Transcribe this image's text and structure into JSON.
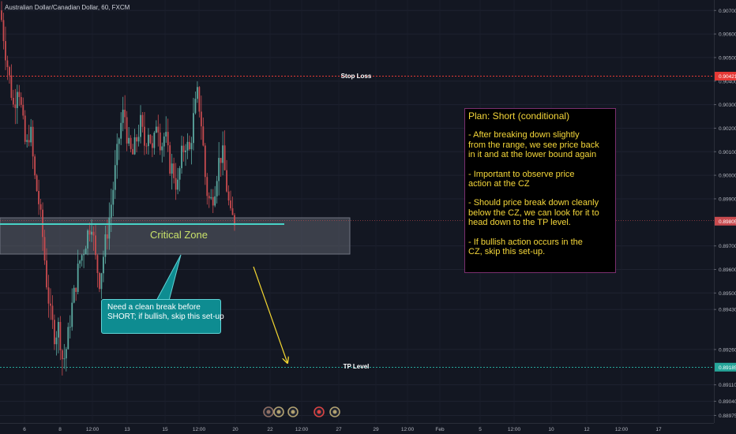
{
  "header": {
    "symbol": "Australian Dollar/Canadian Dollar, 60, FXCM"
  },
  "annotations": {
    "stop_loss": "Stop Loss",
    "tp_level": "TP Level",
    "critical_zone": "Critical Zone",
    "callout_lines": [
      "Need a clean break before",
      "SHORT; if bullish, skip this set-up"
    ],
    "plan_title": "Plan: Short (conditional)",
    "plan_paragraphs": [
      [
        "- After breaking down slightly",
        "from the range, we see price back",
        "in it and at the lower bound again"
      ],
      [
        "- Important to observe price",
        "action at the CZ"
      ],
      [
        "- Should price break down cleanly",
        "below the CZ, we can look for it to",
        "head down to the TP level."
      ],
      [
        "- If bullish action occurs in the",
        "CZ, skip this set-up."
      ]
    ]
  },
  "colors": {
    "background": "#131722",
    "up": "#5ba9a0",
    "down": "#c84b4f",
    "stop_loss": "#e53935",
    "tp_level": "#26a69a",
    "zone_line": "#48d1c6",
    "arrow": "#f3d631",
    "plan_text": "#f5d73a",
    "callout_bg": "#0e8c91"
  },
  "chart_data": {
    "type": "candlestick",
    "symbol": "Australian Dollar/Canadian Dollar, 60, FXCM",
    "timeframe": "60",
    "y_axis": {
      "ticks": [
        {
          "value": 0.907,
          "label": "0.90700"
        },
        {
          "value": 0.906,
          "label": "0.90600"
        },
        {
          "value": 0.905,
          "label": "0.90500"
        },
        {
          "value": 0.904,
          "label": "0.90400"
        },
        {
          "value": 0.903,
          "label": "0.90300"
        },
        {
          "value": 0.902,
          "label": "0.90200"
        },
        {
          "value": 0.901,
          "label": "0.90100"
        },
        {
          "value": 0.9,
          "label": "0.90000"
        },
        {
          "value": 0.899,
          "label": "0.89900"
        },
        {
          "value": 0.897,
          "label": "0.89700"
        },
        {
          "value": 0.896,
          "label": "0.89600"
        },
        {
          "value": 0.895,
          "label": "0.89500"
        },
        {
          "value": 0.8943,
          "label": "0.89430"
        },
        {
          "value": 0.8926,
          "label": "0.89260"
        },
        {
          "value": 0.8911,
          "label": "0.89110"
        },
        {
          "value": 0.8904,
          "label": "0.89040"
        },
        {
          "value": 0.8898,
          "label": "0.88975"
        }
      ],
      "range": [
        0.8897,
        0.9075
      ]
    },
    "x_axis": {
      "ticks": [
        "6",
        "8",
        "12:00",
        "13",
        "15",
        "12:00",
        "20",
        "22",
        "12:00",
        "27",
        "29",
        "12:00",
        "Feb",
        "5",
        "12:00",
        "10",
        "12",
        "12:00",
        "17"
      ]
    },
    "price_labels": [
      {
        "name": "Stop Loss",
        "value": 0.90421,
        "label": "0.90421"
      },
      {
        "name": "Current",
        "value": 0.89805,
        "label": "0.89805"
      },
      {
        "name": "TP Level",
        "value": 0.89185,
        "label": "0.89185"
      }
    ],
    "zone": {
      "name": "Critical Zone",
      "top": 0.8982,
      "bottom": 0.8968,
      "line": 0.8979
    },
    "close_path": [
      0.9066,
      0.9052,
      0.904,
      0.9028,
      0.9041,
      0.9025,
      0.901,
      0.9021,
      0.9,
      0.899,
      0.8975,
      0.8955,
      0.894,
      0.8932,
      0.8936,
      0.892,
      0.8928,
      0.8942,
      0.8952,
      0.8963,
      0.8968,
      0.8975,
      0.8981,
      0.8964,
      0.8955,
      0.8967,
      0.8978,
      0.899,
      0.9005,
      0.902,
      0.9028,
      0.9012,
      0.9008,
      0.9015,
      0.9022,
      0.9013,
      0.902,
      0.9008,
      0.9026,
      0.9012,
      0.9018,
      0.9005,
      0.9002,
      0.8994,
      0.9008,
      0.9014,
      0.901,
      0.9025,
      0.9035,
      0.902,
      0.8995,
      0.8988,
      0.8993,
      0.9005,
      0.901,
      0.8996,
      0.8982,
      0.8981
    ],
    "events": [
      "earnings",
      "dividend",
      "dividend",
      "news",
      "dividend"
    ]
  }
}
